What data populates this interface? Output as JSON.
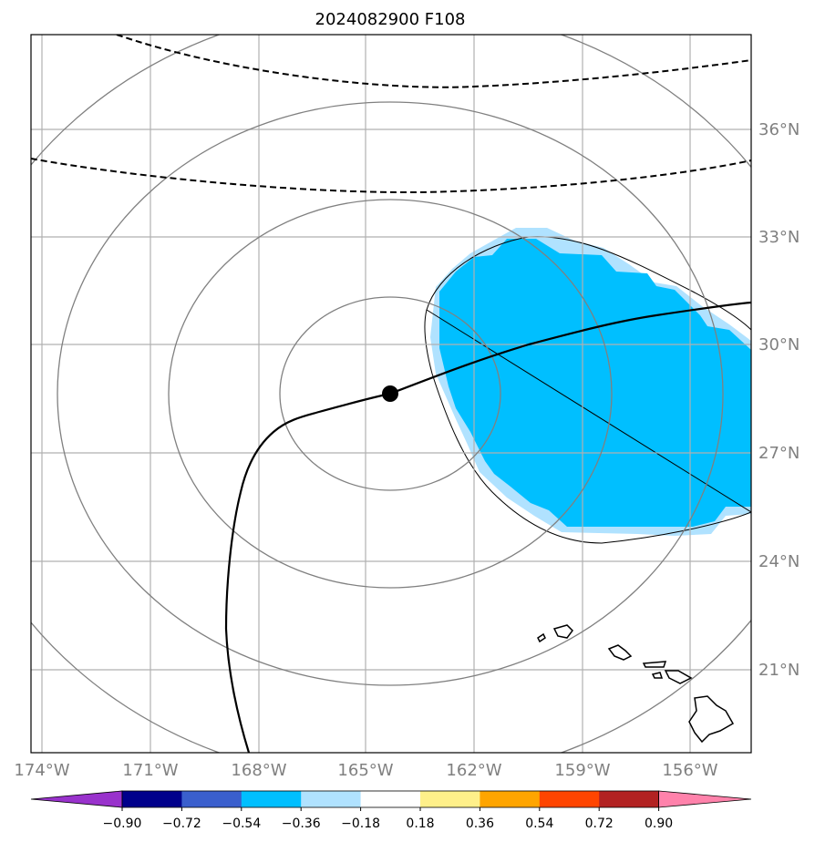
{
  "title": "2024082900 F108",
  "lon_labels": [
    "174°W",
    "171°W",
    "168°W",
    "165°W",
    "162°W",
    "159°W",
    "156°W"
  ],
  "lat_labels": [
    "36°N",
    "33°N",
    "30°N",
    "27°N",
    "24°N",
    "21°N"
  ],
  "colorbar": {
    "tick_labels": [
      "−0.90",
      "−0.72",
      "−0.54",
      "−0.36",
      "−0.18",
      "0.18",
      "0.36",
      "0.54",
      "0.72",
      "0.90"
    ],
    "colors": [
      "#9932cc",
      "#00008b",
      "#3a5fcd",
      "#00bfff",
      "#b0e2ff",
      "#ffffff",
      "#fff08a",
      "#ffa500",
      "#ff4500",
      "#b22222",
      "#ff82ab"
    ]
  },
  "colors": {
    "anomaly_fill": "#00bfff",
    "anomaly_edge": "#b0e2ff",
    "grid": "#b0b0b0",
    "range_rings": "#808080",
    "axis_label": "#808080"
  },
  "features": {
    "storm_center_lat_lon": [
      28.7,
      -164.3
    ],
    "track_style": "solid black line",
    "reference_lines_style": "dashed black",
    "range_ring_count": 4
  }
}
